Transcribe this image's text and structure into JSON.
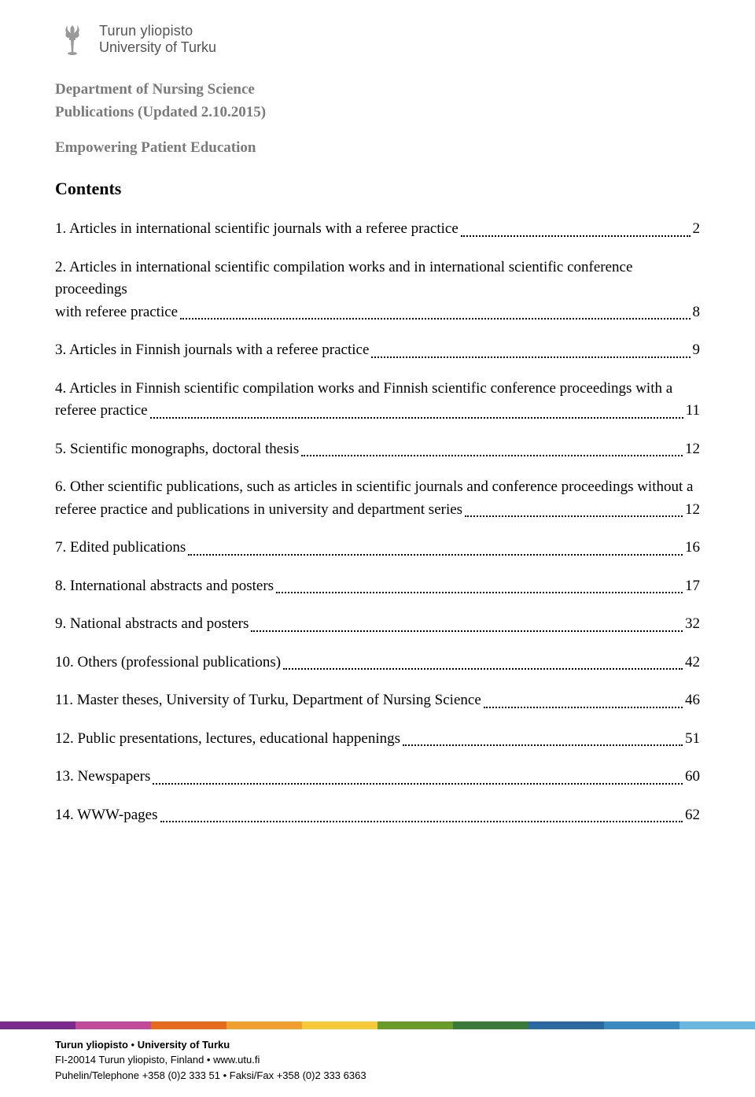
{
  "logo": {
    "fi": "Turun yliopisto",
    "en": "University of Turku",
    "mark_color": "#9a9a9a"
  },
  "header": {
    "dept": "Department of Nursing Science",
    "pubs": "Publications (Updated 2.10.2015)",
    "subhead": "Empowering Patient Education",
    "contents_title": "Contents"
  },
  "toc": [
    {
      "text_pre": "1. Articles in international scientific journals with a referee practice",
      "text_last": "",
      "page": "2",
      "multiline": false
    },
    {
      "text_pre": "2. Articles in international scientific compilation works and in international scientific conference proceedings",
      "text_last": "with referee practice",
      "page": "8",
      "multiline": true
    },
    {
      "text_pre": "3. Articles in Finnish journals with a referee practice",
      "text_last": "",
      "page": "9",
      "multiline": false
    },
    {
      "text_pre": "4. Articles in Finnish scientific compilation works and Finnish scientific conference proceedings with a",
      "text_last": "referee practice",
      "page": "11",
      "multiline": true
    },
    {
      "text_pre": "5. Scientific monographs, doctoral thesis",
      "text_last": "",
      "page": "12",
      "multiline": false
    },
    {
      "text_pre": "6. Other scientific publications, such as articles in scientific journals and conference proceedings without a",
      "text_last": "referee practice and publications in university and department series",
      "page": "12",
      "multiline": true
    },
    {
      "text_pre": "7. Edited publications",
      "text_last": "",
      "page": "16",
      "multiline": false
    },
    {
      "text_pre": "8. International abstracts and posters",
      "text_last": "",
      "page": "17",
      "multiline": false
    },
    {
      "text_pre": "9. National abstracts and posters",
      "text_last": "",
      "page": "32",
      "multiline": false
    },
    {
      "text_pre": "10. Others (professional publications)",
      "text_last": "",
      "page": "42",
      "multiline": false
    },
    {
      "text_pre": "11. Master theses, University of Turku, Department of Nursing Science",
      "text_last": "",
      "page": "46",
      "multiline": false
    },
    {
      "text_pre": "12. Public presentations, lectures, educational happenings",
      "text_last": "",
      "page": "51",
      "multiline": false
    },
    {
      "text_pre": "13. Newspapers",
      "text_last": "",
      "page": "60",
      "multiline": false
    },
    {
      "text_pre": "14. WWW-pages",
      "text_last": "",
      "page": "62",
      "multiline": false
    }
  ],
  "color_bar": [
    "#7a2a8a",
    "#c24a9a",
    "#e56b1f",
    "#f0a030",
    "#f5c938",
    "#6a9a2a",
    "#3a7a3a",
    "#2a6aa0",
    "#3a8ac0",
    "#6ab8e0"
  ],
  "footer": {
    "line1_a": "Turun yliopisto",
    "line1_sep": " • ",
    "line1_b": "University of Turku",
    "line2": "FI-20014 Turun yliopisto, Finland • www.utu.fi",
    "line3": "Puhelin/Telephone +358 (0)2 333 51 • Faksi/Fax +358 (0)2 333 6363"
  }
}
